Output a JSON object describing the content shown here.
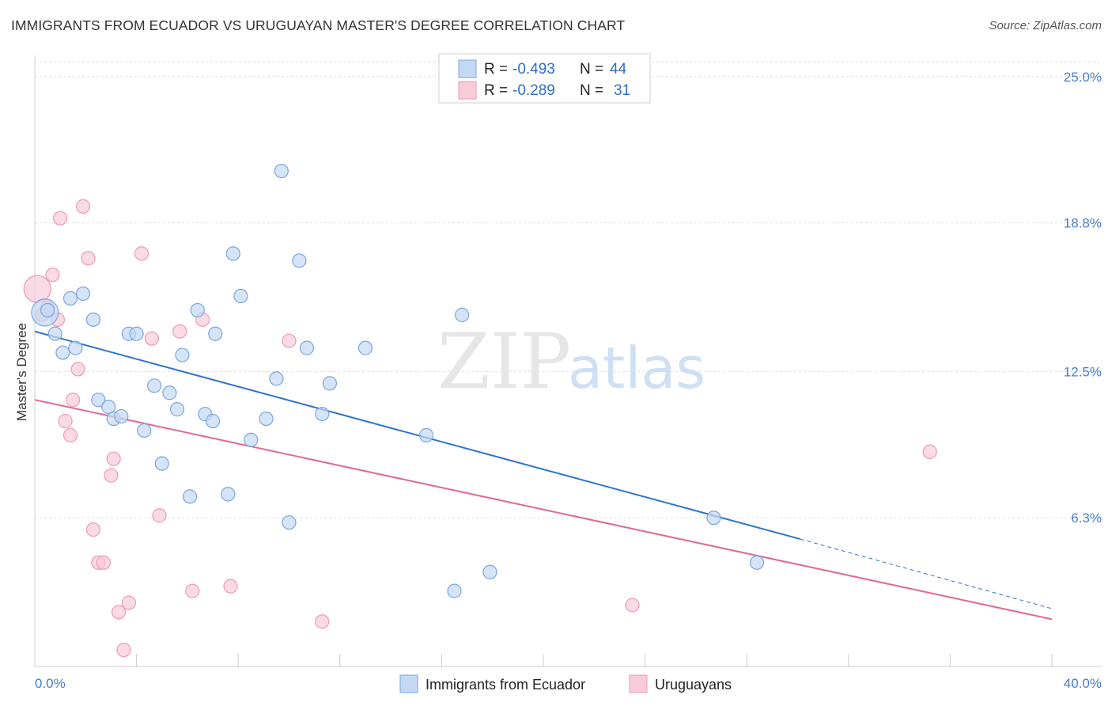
{
  "header": {
    "title": "IMMIGRANTS FROM ECUADOR VS URUGUAYAN MASTER'S DEGREE CORRELATION CHART",
    "source": "Source: ZipAtlas.com"
  },
  "watermark": {
    "zip": "ZIP",
    "atlas": "atlas"
  },
  "colors": {
    "blue_fill": "#c5d8f3",
    "blue_stroke": "#7aa6e0",
    "blue_line": "#2f74d0",
    "pink_fill": "#f8cbd8",
    "pink_stroke": "#ee9ab5",
    "pink_line": "#e06a95",
    "tick_text": "#4a7cc9",
    "grid": "#dddddd"
  },
  "legend": {
    "blue": {
      "r_label": "R = ",
      "r_value": "-0.493",
      "n_label": "N = ",
      "n_value": "44"
    },
    "pink": {
      "r_label": "R = ",
      "r_value": "-0.289",
      "n_label": "N = ",
      "n_value": "31"
    }
  },
  "chart_data": {
    "type": "scatter",
    "title": "IMMIGRANTS FROM ECUADOR VS URUGUAYAN MASTER'S DEGREE CORRELATION CHART",
    "xlabel": "",
    "ylabel": "Master's Degree",
    "xlim": [
      0,
      40
    ],
    "ylim": [
      0,
      25.9
    ],
    "x_tick_labels": [
      "0.0%",
      "40.0%"
    ],
    "y_ticks": [
      6.3,
      12.5,
      18.8,
      25.0
    ],
    "y_tick_labels": [
      "6.3%",
      "12.5%",
      "18.8%",
      "25.0%"
    ],
    "grid": true,
    "legend_position": "top-center",
    "series": [
      {
        "name": "Immigrants from Ecuador",
        "color": "#7aa6e0",
        "points": [
          [
            0.4,
            15.0,
            "large"
          ],
          [
            0.5,
            15.1
          ],
          [
            0.8,
            14.1
          ],
          [
            1.1,
            13.3
          ],
          [
            1.4,
            15.6
          ],
          [
            1.6,
            13.5
          ],
          [
            1.9,
            15.8
          ],
          [
            2.3,
            14.7
          ],
          [
            2.5,
            11.3
          ],
          [
            2.9,
            11.0
          ],
          [
            3.1,
            10.5
          ],
          [
            3.4,
            10.6
          ],
          [
            3.7,
            14.1
          ],
          [
            4.0,
            14.1
          ],
          [
            4.3,
            10.0
          ],
          [
            4.7,
            11.9
          ],
          [
            5.0,
            8.6
          ],
          [
            5.3,
            11.6
          ],
          [
            5.6,
            10.9
          ],
          [
            5.8,
            13.2
          ],
          [
            6.1,
            7.2
          ],
          [
            6.4,
            15.1
          ],
          [
            6.7,
            10.7
          ],
          [
            7.0,
            10.4
          ],
          [
            7.1,
            14.1
          ],
          [
            7.6,
            7.3
          ],
          [
            7.8,
            17.5
          ],
          [
            8.1,
            15.7
          ],
          [
            8.5,
            9.6
          ],
          [
            9.1,
            10.5
          ],
          [
            9.5,
            12.2
          ],
          [
            9.7,
            21.0
          ],
          [
            10.0,
            6.1
          ],
          [
            10.4,
            17.2
          ],
          [
            10.7,
            13.5
          ],
          [
            11.3,
            10.7
          ],
          [
            11.6,
            12.0
          ],
          [
            13.0,
            13.5
          ],
          [
            15.4,
            9.8
          ],
          [
            16.5,
            3.2
          ],
          [
            16.8,
            14.9
          ],
          [
            17.9,
            4.0
          ],
          [
            26.7,
            6.3
          ],
          [
            28.4,
            4.4
          ]
        ]
      },
      {
        "name": "Uruguayans",
        "color": "#ee9ab5",
        "points": [
          [
            0.1,
            16.0,
            "large"
          ],
          [
            0.5,
            15.2
          ],
          [
            0.7,
            16.6
          ],
          [
            0.9,
            14.7
          ],
          [
            1.0,
            19.0
          ],
          [
            1.2,
            10.4
          ],
          [
            1.4,
            9.8
          ],
          [
            1.5,
            11.3
          ],
          [
            1.7,
            12.6
          ],
          [
            1.9,
            19.5
          ],
          [
            2.1,
            17.3
          ],
          [
            2.3,
            5.8
          ],
          [
            2.5,
            4.4
          ],
          [
            2.7,
            4.4
          ],
          [
            3.0,
            8.1
          ],
          [
            3.1,
            8.8
          ],
          [
            3.3,
            2.3
          ],
          [
            3.5,
            0.7
          ],
          [
            3.7,
            2.7
          ],
          [
            4.2,
            17.5
          ],
          [
            4.6,
            13.9
          ],
          [
            4.9,
            6.4
          ],
          [
            5.7,
            14.2
          ],
          [
            6.2,
            3.2
          ],
          [
            6.6,
            14.7
          ],
          [
            7.7,
            3.4
          ],
          [
            10.0,
            13.8
          ],
          [
            11.3,
            1.9
          ],
          [
            23.5,
            2.6
          ],
          [
            35.2,
            9.1
          ],
          [
            0.3,
            14.9
          ]
        ]
      }
    ],
    "trendlines": [
      {
        "series": "Immigrants from Ecuador",
        "x": [
          0,
          30.1
        ],
        "y": [
          14.2,
          5.4
        ],
        "dashed_extension_to": [
          40,
          2.45
        ]
      },
      {
        "series": "Uruguayans",
        "x": [
          0,
          40
        ],
        "y": [
          11.3,
          2.0
        ]
      }
    ]
  }
}
